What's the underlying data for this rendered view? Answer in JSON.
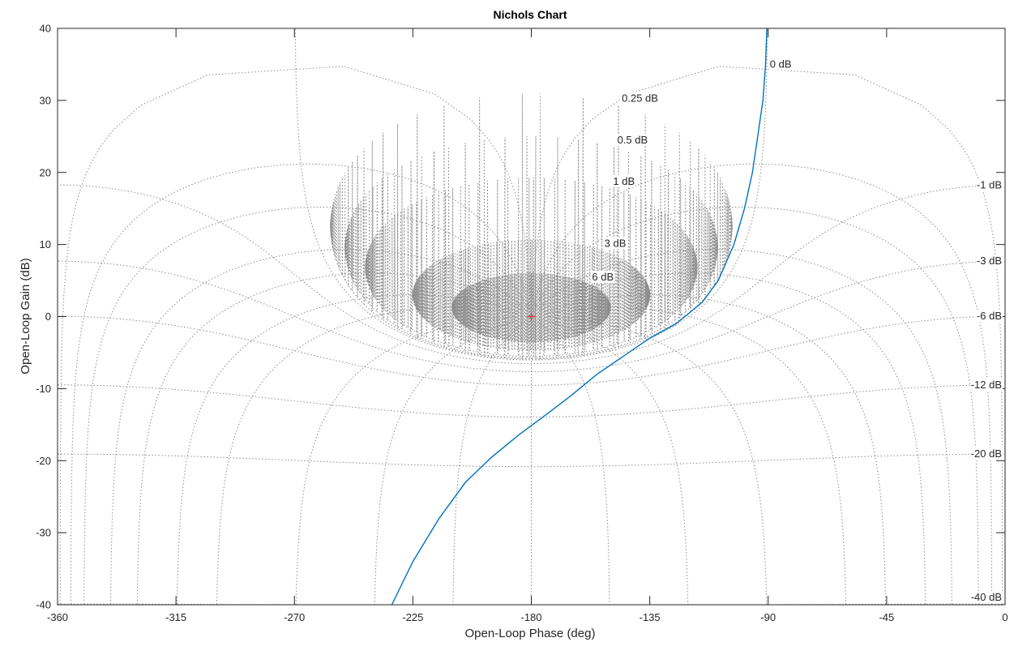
{
  "chart_data": {
    "type": "line",
    "title": "Nichols Chart",
    "xlabel": "Open-Loop Phase (deg)",
    "ylabel": "Open-Loop Gain (dB)",
    "xlim": [
      -360,
      0
    ],
    "ylim": [
      -40,
      40
    ],
    "xticks": [
      -360,
      -315,
      -270,
      -225,
      -180,
      -135,
      -90,
      -45,
      0
    ],
    "yticks": [
      -40,
      -30,
      -20,
      -10,
      0,
      10,
      20,
      30,
      40
    ],
    "grid": "nichols",
    "closed_loop_gain_labels": [
      {
        "text": "0 dB",
        "db": 0,
        "side": "top"
      },
      {
        "text": "0.25 dB",
        "db": 0.25,
        "side": "top"
      },
      {
        "text": "0.5 dB",
        "db": 0.5,
        "side": "top"
      },
      {
        "text": "1 dB",
        "db": 1,
        "side": "top"
      },
      {
        "text": "3 dB",
        "db": 3,
        "side": "top"
      },
      {
        "text": "6 dB",
        "db": 6,
        "side": "top"
      },
      {
        "text": "-1 dB",
        "db": -1,
        "side": "right"
      },
      {
        "text": "-3 dB",
        "db": -3,
        "side": "right"
      },
      {
        "text": "-6 dB",
        "db": -6,
        "side": "right"
      },
      {
        "text": "-12 dB",
        "db": -12,
        "side": "right"
      },
      {
        "text": "-20 dB",
        "db": -20,
        "side": "right"
      },
      {
        "text": "-40 dB",
        "db": -40,
        "side": "right"
      }
    ],
    "critical_point": {
      "x": -180,
      "y": 0,
      "marker": "+"
    },
    "series": [
      {
        "color": "#0072BD",
        "points": [
          [
            -90.5,
            40
          ],
          [
            -91,
            35
          ],
          [
            -92,
            30
          ],
          [
            -94,
            25
          ],
          [
            -96,
            20
          ],
          [
            -99,
            15
          ],
          [
            -103,
            10
          ],
          [
            -109,
            5
          ],
          [
            -115,
            2
          ],
          [
            -125,
            -1
          ],
          [
            -135,
            -3
          ],
          [
            -155,
            -8
          ],
          [
            -165,
            -11
          ],
          [
            -175,
            -13.8
          ],
          [
            -185,
            -16.5
          ],
          [
            -195,
            -19.5
          ],
          [
            -205,
            -23
          ],
          [
            -215,
            -28
          ],
          [
            -225,
            -34
          ],
          [
            -233,
            -40
          ]
        ]
      }
    ],
    "colors": {
      "axes": "#262626",
      "grid": "#8c8c8c",
      "marker": "#e8302a"
    }
  }
}
